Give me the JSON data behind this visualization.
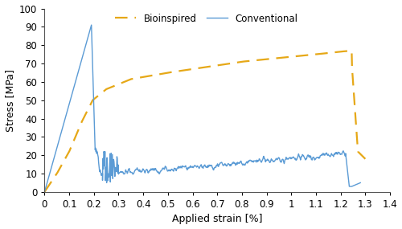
{
  "title": "",
  "xlabel": "Applied strain [%]",
  "ylabel": "Stress [MPa]",
  "xlim": [
    0,
    1.4
  ],
  "ylim": [
    0,
    100
  ],
  "xticks": [
    0,
    0.1,
    0.2,
    0.3,
    0.4,
    0.5,
    0.6,
    0.7,
    0.8,
    0.9,
    1.0,
    1.1,
    1.2,
    1.3,
    1.4
  ],
  "xtick_labels": [
    "0",
    "0.1",
    "0.2",
    "0.3",
    "0.4",
    "0.5",
    "0.6",
    "0.7",
    "0.8",
    "0.9",
    "1",
    "1.1",
    "1.2",
    "1.3",
    "1.4"
  ],
  "yticks": [
    0,
    10,
    20,
    30,
    40,
    50,
    60,
    70,
    80,
    90,
    100
  ],
  "bioinspired_color": "#E6A817",
  "conventional_color": "#5B9BD5",
  "legend_labels": [
    "Bioinspired",
    "Conventional"
  ],
  "figsize": [
    5.0,
    2.85
  ],
  "dpi": 100
}
